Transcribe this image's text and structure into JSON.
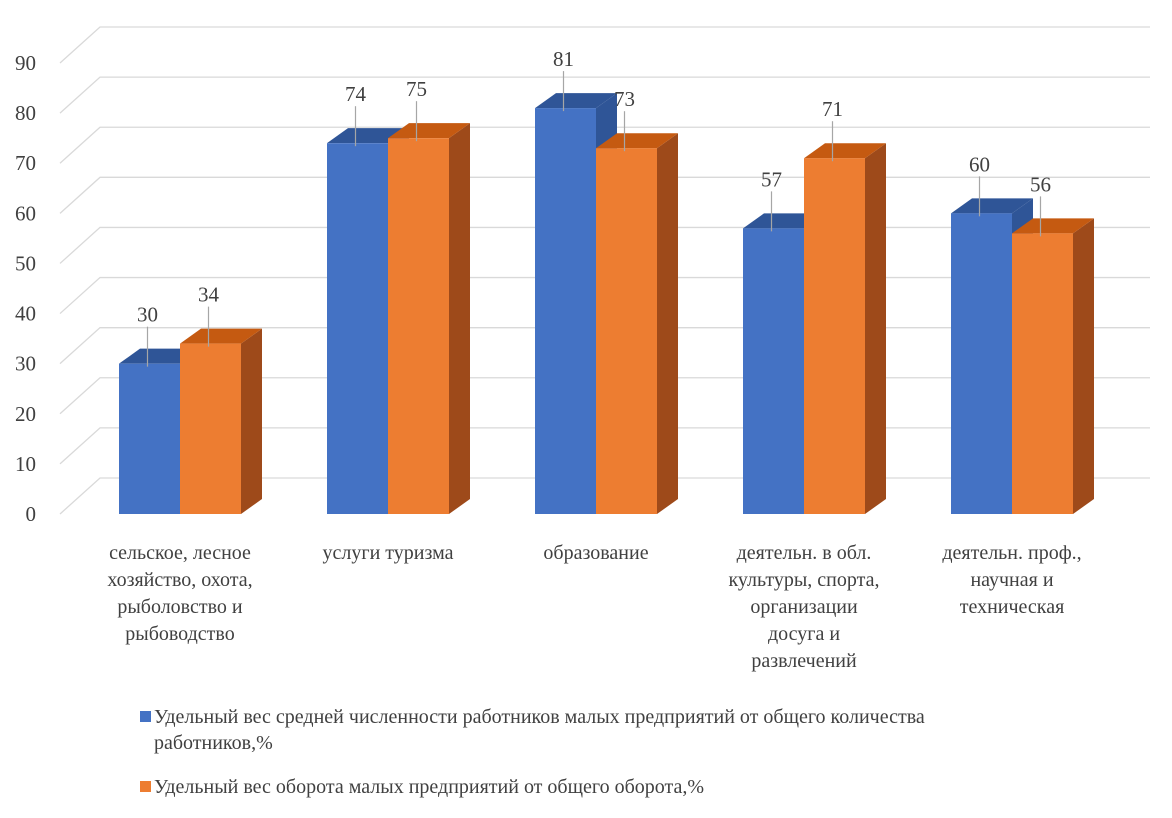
{
  "chart_data": {
    "type": "bar",
    "style": "3d-clustered-column",
    "categories": [
      [
        "сельское, лесное",
        "хозяйство, охота,",
        "рыболовство и",
        "рыбоводство"
      ],
      [
        "услуги туризма"
      ],
      [
        "образование"
      ],
      [
        "деятельн. в обл.",
        "культуры, спорта,",
        "организации",
        "досуга и",
        "развлечений"
      ],
      [
        "деятельн. проф.,",
        "научная и",
        "техническая"
      ]
    ],
    "series": [
      {
        "name": "Удельный вес средней численности работников малых предприятий от общего количества работников,%",
        "legend_lines": [
          "Удельный вес средней численности работников малых предприятий от общего количества",
          "работников,%"
        ],
        "values": [
          30,
          74,
          81,
          57,
          60
        ],
        "color": "#4472C4",
        "side_color": "#2F5597",
        "top_color": "#2F5597"
      },
      {
        "name": "Удельный вес оборота малых предприятий от общего оборота,%",
        "legend_lines": [
          "Удельный вес оборота малых предприятий от общего оборота,%"
        ],
        "values": [
          34,
          75,
          73,
          71,
          56
        ],
        "color": "#ED7D31",
        "side_color": "#9E4A1A",
        "top_color": "#C55A11"
      }
    ],
    "ylim": [
      0,
      90
    ],
    "yticks": [
      0,
      10,
      20,
      30,
      40,
      50,
      60,
      70,
      80,
      90
    ],
    "grid": true,
    "legend_position": "bottom",
    "gridline_color": "#D9D9D9"
  }
}
